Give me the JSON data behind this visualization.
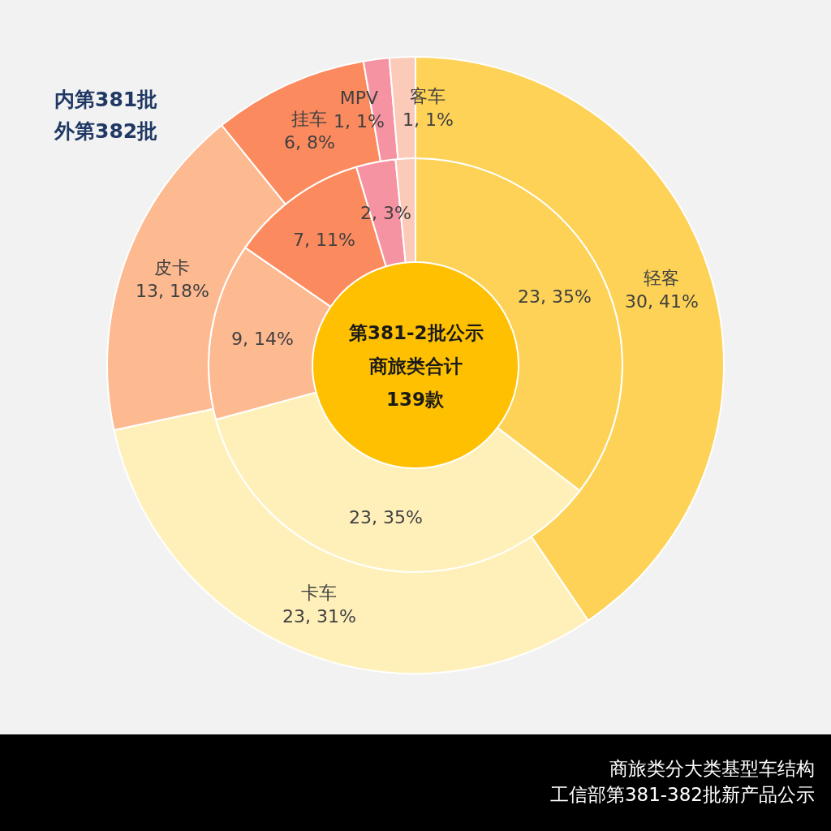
{
  "chart_data": {
    "type": "donut",
    "title": "商旅类分大类基型车结构",
    "subtitle": "工信部第381-382批新产品公示",
    "categories": [
      "轻客",
      "卡车",
      "皮卡",
      "挂车",
      "MPV",
      "客车"
    ],
    "series": [
      {
        "values": [
          23,
          23,
          9,
          7,
          2,
          1
        ],
        "colors": [
          "#fdd257",
          "#fff0ba",
          "#fdb990",
          "#fc8a5f",
          "#f693a3",
          "#fccab8"
        ],
        "value_labels": [
          "23, 35%",
          "23, 35%",
          "9, 14%",
          "7, 11%",
          "2, 3%",
          null
        ]
      },
      {
        "values": [
          30,
          23,
          13,
          6,
          1,
          1
        ],
        "colors": [
          "#fdd257",
          "#fff0ba",
          "#fdb990",
          "#fc8a5f",
          "#f693a3",
          "#fccab8"
        ],
        "value_labels": [
          "30, 41%",
          "23, 31%",
          "13, 18%",
          "6, 8%",
          "1, 1%",
          "1, 1%"
        ]
      }
    ],
    "annotations": [
      "内第381批",
      "外第382批",
      "第381-2批公示",
      "商旅类合计",
      "139款"
    ],
    "legend": false
  }
}
